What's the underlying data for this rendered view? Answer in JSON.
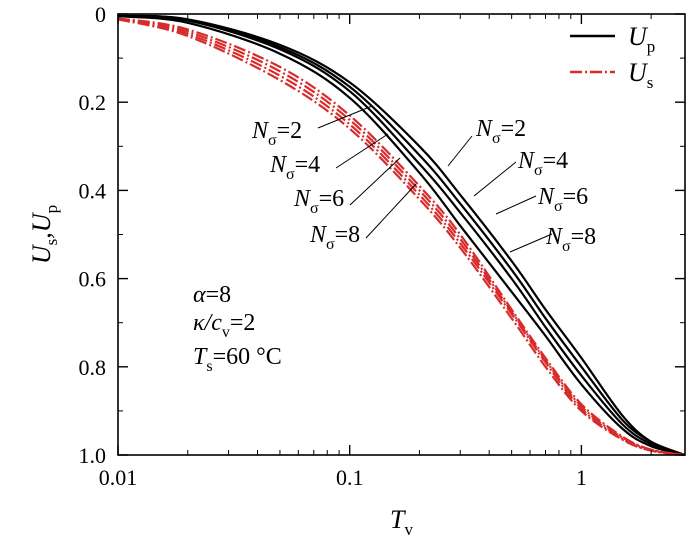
{
  "chart_data": {
    "type": "line",
    "xlabel": "T",
    "xlabel_sub": "v",
    "ylabel_parts": [
      "U",
      "s",
      ",U",
      "p"
    ],
    "x_scale": "log",
    "xlim": [
      0.01,
      2.8
    ],
    "ylim": [
      0,
      1.0
    ],
    "y_inverted": true,
    "grid": false,
    "legend_position": "top-right",
    "x_ticks": [
      {
        "value": 0.01,
        "label": "0.01"
      },
      {
        "value": 0.1,
        "label": "0.1"
      },
      {
        "value": 1,
        "label": "1"
      }
    ],
    "y_ticks": [
      {
        "value": 0,
        "label": "0"
      },
      {
        "value": 0.2,
        "label": "0.2"
      },
      {
        "value": 0.4,
        "label": "0.4"
      },
      {
        "value": 0.6,
        "label": "0.6"
      },
      {
        "value": 0.8,
        "label": "0.8"
      },
      {
        "value": 1.0,
        "label": "1.0"
      }
    ],
    "legend": [
      {
        "key": "Up",
        "main": "U",
        "sub": "p",
        "color": "#000000",
        "dash": "solid"
      },
      {
        "key": "Us",
        "main": "U",
        "sub": "s",
        "color": "#d92b2b",
        "dash": "dashdot"
      }
    ],
    "x": [
      0.01,
      0.02,
      0.05,
      0.1,
      0.2,
      0.3,
      0.5,
      0.7,
      1.0,
      1.5,
      2.0,
      2.8
    ],
    "series": [
      {
        "group": "Up",
        "ns": 2,
        "color": "#000000",
        "values": [
          0.005,
          0.02,
          0.09,
          0.19,
          0.36,
          0.48,
          0.63,
          0.73,
          0.84,
          0.94,
          0.98,
          1.0
        ]
      },
      {
        "group": "Up",
        "ns": 4,
        "color": "#000000",
        "values": [
          0.005,
          0.015,
          0.08,
          0.175,
          0.34,
          0.45,
          0.6,
          0.71,
          0.82,
          0.93,
          0.975,
          1.0
        ]
      },
      {
        "group": "Up",
        "ns": 6,
        "color": "#000000",
        "values": [
          0.004,
          0.013,
          0.075,
          0.165,
          0.32,
          0.43,
          0.58,
          0.69,
          0.8,
          0.92,
          0.97,
          1.0
        ]
      },
      {
        "group": "Up",
        "ns": 8,
        "color": "#000000",
        "values": [
          0.004,
          0.012,
          0.07,
          0.155,
          0.3,
          0.41,
          0.56,
          0.67,
          0.78,
          0.91,
          0.97,
          1.0
        ]
      },
      {
        "group": "Us",
        "ns": 2,
        "color": "#d92b2b",
        "values": [
          0.012,
          0.05,
          0.15,
          0.26,
          0.42,
          0.53,
          0.69,
          0.8,
          0.9,
          0.965,
          0.99,
          1.0
        ]
      },
      {
        "group": "Us",
        "ns": 4,
        "color": "#d92b2b",
        "values": [
          0.012,
          0.045,
          0.14,
          0.25,
          0.41,
          0.52,
          0.68,
          0.79,
          0.895,
          0.963,
          0.99,
          1.0
        ]
      },
      {
        "group": "Us",
        "ns": 6,
        "color": "#d92b2b",
        "values": [
          0.011,
          0.04,
          0.13,
          0.24,
          0.4,
          0.51,
          0.675,
          0.785,
          0.89,
          0.96,
          0.988,
          1.0
        ]
      },
      {
        "group": "Us",
        "ns": 8,
        "color": "#d92b2b",
        "values": [
          0.01,
          0.035,
          0.12,
          0.23,
          0.39,
          0.5,
          0.67,
          0.78,
          0.885,
          0.958,
          0.988,
          1.0
        ]
      }
    ],
    "curve_labels_left": [
      {
        "main": "N",
        "sub": "σ",
        "tail": "=2"
      },
      {
        "main": "N",
        "sub": "σ",
        "tail": "=4"
      },
      {
        "main": "N",
        "sub": "σ",
        "tail": "=6"
      },
      {
        "main": "N",
        "sub": "σ",
        "tail": "=8"
      }
    ],
    "curve_labels_right": [
      {
        "main": "N",
        "sub": "σ",
        "tail": "=2"
      },
      {
        "main": "N",
        "sub": "σ",
        "tail": "=4"
      },
      {
        "main": "N",
        "sub": "σ",
        "tail": "=6"
      },
      {
        "main": "N",
        "sub": "σ",
        "tail": "=8"
      }
    ],
    "parameters": [
      {
        "main": "α",
        "sub": "",
        "tail": "=8"
      },
      {
        "main": "κ/c",
        "sub": "v",
        "tail": "=2"
      },
      {
        "main": "T",
        "sub": "s",
        "tail": "=60 °C"
      }
    ]
  }
}
